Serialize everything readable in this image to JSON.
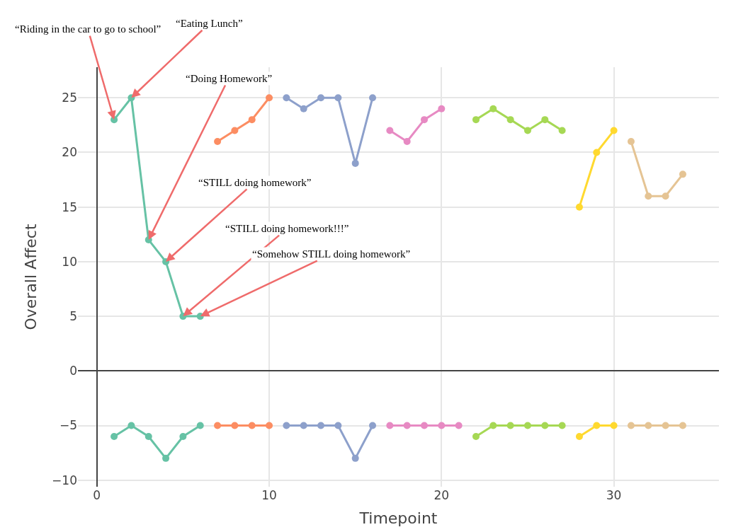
{
  "chart_data": {
    "type": "line",
    "xlabel": "Timepoint",
    "ylabel": "Overall Affect",
    "xlim": [
      -1.1,
      36.1
    ],
    "xticks": [
      0,
      10,
      20,
      30
    ],
    "ylim": [
      -10.6,
      27.8
    ],
    "yticks": [
      -10,
      -5,
      0,
      5,
      10,
      15,
      20,
      25
    ],
    "grid": true,
    "marker": "circle",
    "line_style": "solid",
    "series": [
      {
        "color": "#66c2a5",
        "x": [
          1,
          2,
          3,
          4,
          5,
          6
        ],
        "values": [
          23,
          25,
          12,
          10,
          5,
          5
        ]
      },
      {
        "color": "#66c2a5",
        "x": [
          1,
          2,
          3,
          4,
          5,
          6
        ],
        "values": [
          -6,
          -5,
          -6,
          -8,
          -6,
          -5
        ]
      },
      {
        "color": "#fc8d62",
        "x": [
          7,
          8,
          9,
          10
        ],
        "values": [
          21,
          22,
          23,
          25
        ]
      },
      {
        "color": "#fc8d62",
        "x": [
          7,
          8,
          9,
          10
        ],
        "values": [
          -5,
          -5,
          -5,
          -5
        ]
      },
      {
        "color": "#8da0cb",
        "x": [
          11,
          12,
          13,
          14,
          15,
          16
        ],
        "values": [
          25,
          24,
          25,
          25,
          19,
          25
        ]
      },
      {
        "color": "#8da0cb",
        "x": [
          11,
          12,
          13,
          14,
          15,
          16
        ],
        "values": [
          -5,
          -5,
          -5,
          -5,
          -8,
          -5
        ]
      },
      {
        "color": "#e78ac3",
        "x": [
          17,
          18,
          19,
          20
        ],
        "values": [
          22,
          21,
          23,
          24
        ]
      },
      {
        "color": "#e78ac3",
        "x": [
          17,
          18,
          19,
          20,
          21
        ],
        "values": [
          -5,
          -5,
          -5,
          -5,
          -5
        ]
      },
      {
        "color": "#a6d854",
        "x": [
          22,
          23,
          24,
          25,
          26,
          27
        ],
        "values": [
          23,
          24,
          23,
          22,
          23,
          22
        ]
      },
      {
        "color": "#a6d854",
        "x": [
          22,
          23,
          24,
          25,
          26,
          27
        ],
        "values": [
          -6,
          -5,
          -5,
          -5,
          -5,
          -5
        ]
      },
      {
        "color": "#ffd92f",
        "x": [
          28,
          29,
          30
        ],
        "values": [
          15,
          20,
          22
        ]
      },
      {
        "color": "#ffd92f",
        "x": [
          28,
          29,
          30
        ],
        "values": [
          -6,
          -5,
          -5
        ]
      },
      {
        "color": "#e5c494",
        "x": [
          31,
          32,
          33,
          34
        ],
        "values": [
          21,
          16,
          16,
          18
        ]
      },
      {
        "color": "#e5c494",
        "x": [
          31,
          32,
          33,
          34
        ],
        "values": [
          -5,
          -5,
          -5,
          -5
        ]
      }
    ],
    "annotations": [
      {
        "text": "“Riding in the car to go to school”",
        "x": 1,
        "y": 23
      },
      {
        "text": "“Eating Lunch”",
        "x": 2,
        "y": 25
      },
      {
        "text": "“Doing Homework”",
        "x": 3,
        "y": 12
      },
      {
        "text": "“STILL doing homework”",
        "x": 4,
        "y": 10
      },
      {
        "text": "“STILL doing homework!!!”",
        "x": 5,
        "y": 5
      },
      {
        "text": "“Somehow STILL doing homework”",
        "x": 6,
        "y": 5
      }
    ]
  }
}
